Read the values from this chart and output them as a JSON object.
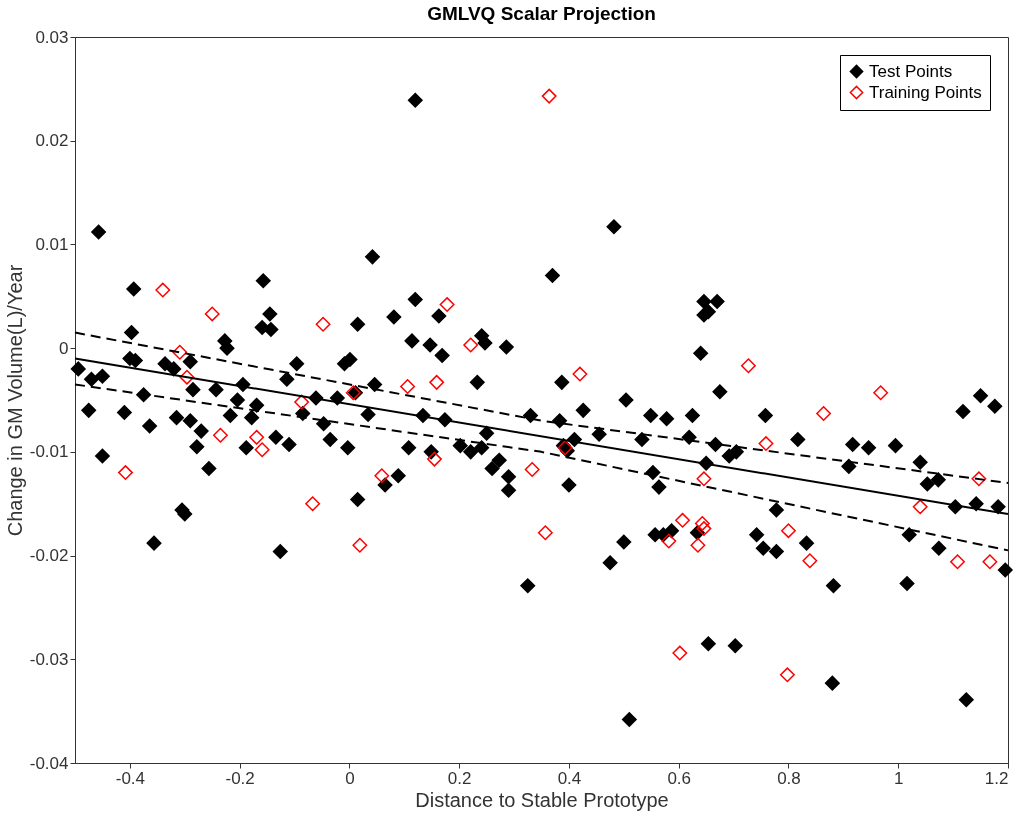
{
  "chart_data": {
    "type": "scatter",
    "title": "GMLVQ Scalar Projection",
    "xlabel": "Distance to Stable Prototype",
    "ylabel": "Change in GM Volume(L)/Year",
    "xlim": [
      -0.5,
      1.2
    ],
    "xticks": [
      -0.4,
      -0.2,
      0,
      0.2,
      0.4,
      0.6,
      0.8,
      1,
      1.2
    ],
    "ylim": [
      -0.04,
      0.03
    ],
    "yticks": [
      -0.04,
      -0.03,
      -0.02,
      -0.01,
      0,
      0.01,
      0.02,
      0.03
    ],
    "grid": false,
    "legend": "top right",
    "series": [
      {
        "name": "Test Points",
        "color": "#000000",
        "marker": "diamond",
        "x": [
          -0.494,
          -0.47,
          -0.475,
          -0.457,
          -0.45,
          -0.45,
          -0.41,
          -0.397,
          -0.393,
          -0.4,
          -0.39,
          -0.375,
          -0.364,
          -0.356,
          -0.336,
          -0.32,
          -0.315,
          -0.305,
          -0.3,
          -0.29,
          -0.285,
          -0.29,
          -0.278,
          -0.27,
          -0.256,
          -0.243,
          -0.227,
          -0.223,
          -0.217,
          -0.204,
          -0.194,
          -0.188,
          -0.178,
          -0.169,
          -0.157,
          -0.159,
          -0.145,
          -0.143,
          -0.134,
          -0.126,
          -0.114,
          -0.11,
          -0.096,
          -0.085,
          -0.061,
          -0.047,
          -0.035,
          -0.022,
          -0.009,
          -0.003,
          0.001,
          0.011,
          0.015,
          0.015,
          0.034,
          0.042,
          0.046,
          0.065,
          0.081,
          0.089,
          0.108,
          0.114,
          0.12,
          0.12,
          0.134,
          0.147,
          0.149,
          0.163,
          0.169,
          0.174,
          0.202,
          0.221,
          0.233,
          0.241,
          0.247,
          0.241,
          0.25,
          0.26,
          0.273,
          0.286,
          0.29,
          0.29,
          0.325,
          0.33,
          0.37,
          0.383,
          0.387,
          0.39,
          0.397,
          0.4,
          0.41,
          0.426,
          0.455,
          0.475,
          0.482,
          0.504,
          0.5,
          0.51,
          0.533,
          0.549,
          0.553,
          0.564,
          0.578,
          0.557,
          0.572,
          0.587,
          0.619,
          0.625,
          0.634,
          0.64,
          0.646,
          0.646,
          0.654,
          0.67,
          0.65,
          0.654,
          0.675,
          0.667,
          0.692,
          0.705,
          0.703,
          0.742,
          0.754,
          0.778,
          0.758,
          0.778,
          0.817,
          0.833,
          0.882,
          0.88,
          0.91,
          0.917,
          0.946,
          0.995,
          1.016,
          1.02,
          1.04,
          1.053,
          1.073,
          1.074,
          1.104,
          1.118,
          1.124,
          1.142,
          1.15,
          1.176,
          1.182,
          1.195
        ],
        "values": [
          -0.002,
          -0.003,
          -0.006,
          0.0112,
          -0.0104,
          -0.0027,
          -0.0062,
          0.0015,
          0.0057,
          -0.001,
          -0.0012,
          -0.0045,
          -0.0075,
          -0.0188,
          -0.0015,
          -0.002,
          -0.0067,
          -0.0156,
          -0.016,
          -0.0013,
          -0.004,
          -0.007,
          -0.0095,
          -0.008,
          -0.0116,
          -0.004,
          0.0007,
          0,
          -0.0065,
          -0.005,
          -0.0035,
          -0.0096,
          -0.0067,
          -0.0055,
          0.0065,
          0.002,
          0.0033,
          0.0018,
          -0.0086,
          -0.0196,
          -0.003,
          -0.0093,
          -0.0015,
          -0.0063,
          -0.0048,
          -0.0073,
          -0.0088,
          -0.0048,
          -0.0015,
          -0.0096,
          -0.0011,
          -0.0043,
          0.0023,
          -0.0146,
          -0.0064,
          0.0088,
          -0.0035,
          -0.0132,
          0.003,
          -0.0123,
          -0.0096,
          0.0007,
          0.0239,
          0.0047,
          -0.0065,
          0.0003,
          -0.01,
          0.0031,
          -0.0007,
          -0.0069,
          -0.0094,
          -0.01,
          -0.0033,
          0.0012,
          0.0005,
          -0.0096,
          -0.0082,
          -0.0116,
          -0.0108,
          0.0001,
          -0.0124,
          -0.0137,
          -0.0229,
          -0.0065,
          0.007,
          -0.007,
          -0.0033,
          -0.0094,
          -0.0099,
          -0.0132,
          -0.0088,
          -0.006,
          -0.0083,
          -0.0207,
          0.0117,
          -0.005,
          -0.0187,
          -0.0358,
          -0.0088,
          -0.0065,
          -0.012,
          -0.0134,
          -0.0068,
          -0.018,
          -0.018,
          -0.0176,
          -0.0086,
          -0.0065,
          -0.0178,
          -0.0005,
          0.0045,
          0.0032,
          0.0035,
          0.0045,
          -0.0111,
          -0.0285,
          -0.0042,
          -0.0093,
          -0.0104,
          -0.01,
          -0.0287,
          -0.018,
          -0.0193,
          -0.0196,
          -0.0065,
          -0.0156,
          -0.0088,
          -0.0188,
          -0.0229,
          -0.0323,
          -0.0114,
          -0.0093,
          -0.0096,
          -0.0094,
          -0.0227,
          -0.018,
          -0.011,
          -0.0131,
          -0.0127,
          -0.0193,
          -0.0153,
          -0.0061,
          -0.0339,
          -0.015,
          -0.0046,
          -0.0056,
          -0.0153,
          -0.0214
        ]
      },
      {
        "name": "Training Points",
        "color": "#ff0000",
        "marker": "diamond",
        "x": [
          -0.34,
          -0.408,
          -0.309,
          -0.296,
          -0.25,
          -0.235,
          -0.169,
          -0.159,
          -0.087,
          -0.067,
          -0.048,
          0.007,
          0.019,
          0.059,
          0.106,
          0.155,
          0.159,
          0.178,
          0.221,
          0.333,
          0.357,
          0.364,
          0.393,
          0.42,
          0.582,
          0.602,
          0.607,
          0.635,
          0.643,
          0.646,
          0.646,
          0.727,
          0.759,
          0.8,
          0.798,
          0.839,
          0.864,
          0.968,
          1.04,
          1.108,
          1.147,
          1.167
        ],
        "values": [
          0.0056,
          -0.012,
          -0.0004,
          -0.0028,
          0.0033,
          -0.0084,
          -0.0086,
          -0.0098,
          -0.0052,
          -0.015,
          0.0023,
          -0.0043,
          -0.019,
          -0.0123,
          -0.0037,
          -0.0107,
          -0.0033,
          0.0042,
          0.0003,
          -0.0117,
          -0.0178,
          0.0243,
          -0.0096,
          -0.0025,
          -0.0186,
          -0.0294,
          -0.0166,
          -0.019,
          -0.0169,
          -0.0174,
          -0.0126,
          -0.0017,
          -0.0092,
          -0.0176,
          -0.0315,
          -0.0205,
          -0.0063,
          -0.0043,
          -0.0153,
          -0.0206,
          -0.0126,
          -0.0206
        ]
      },
      {
        "color": "#000000",
        "type": "line",
        "marker": "none",
        "line_style": "solid",
        "x": [
          -0.5,
          1.2
        ],
        "values": [
          -0.001,
          -0.016
        ]
      },
      {
        "color": "#000000",
        "type": "line",
        "marker": "none",
        "line_style": "dashed",
        "x": [
          -0.5,
          0.35,
          1.2
        ],
        "values": [
          0.0015,
          -0.007,
          -0.013
        ]
      },
      {
        "color": "#000000",
        "type": "line",
        "marker": "none",
        "line_style": "dashed",
        "x": [
          -0.5,
          0.35,
          1.2
        ],
        "values": [
          -0.0035,
          -0.01,
          -0.0195
        ]
      }
    ]
  }
}
